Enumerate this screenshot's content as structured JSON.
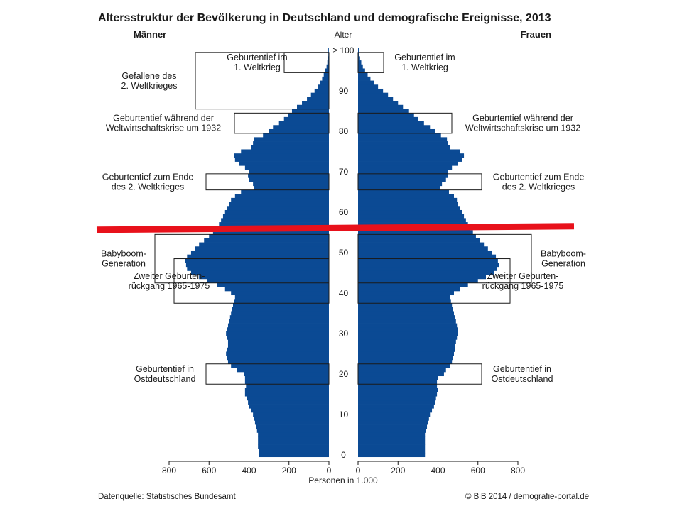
{
  "colors": {
    "bar": "#0b4a94",
    "highlight_line": "#e8111b",
    "box_stroke": "#1a1a1a"
  },
  "chart_data": {
    "type": "bar",
    "orientation": "horizontal",
    "subtype": "population-pyramid",
    "title": "Altersstruktur der Bevölkerung in Deutschland und demografische Ereignisse, 2013",
    "left_header": "Männer",
    "right_header": "Frauen",
    "center_header": "Alter",
    "xlabel": "Personen in 1.000",
    "xlim": [
      0,
      800
    ],
    "x_ticks": [
      "800",
      "600",
      "400",
      "200",
      "0",
      "0",
      "200",
      "400",
      "600",
      "800"
    ],
    "age_ticks": [
      "0",
      "10",
      "20",
      "30",
      "40",
      "50",
      "60",
      "70",
      "80",
      "90",
      "≥ 100"
    ],
    "ages": [
      0,
      1,
      2,
      3,
      4,
      5,
      6,
      7,
      8,
      9,
      10,
      11,
      12,
      13,
      14,
      15,
      16,
      17,
      18,
      19,
      20,
      21,
      22,
      23,
      24,
      25,
      26,
      27,
      28,
      29,
      30,
      31,
      32,
      33,
      34,
      35,
      36,
      37,
      38,
      39,
      40,
      41,
      42,
      43,
      44,
      45,
      46,
      47,
      48,
      49,
      50,
      51,
      52,
      53,
      54,
      55,
      56,
      57,
      58,
      59,
      60,
      61,
      62,
      63,
      64,
      65,
      66,
      67,
      68,
      69,
      70,
      71,
      72,
      73,
      74,
      75,
      76,
      77,
      78,
      79,
      80,
      81,
      82,
      83,
      84,
      85,
      86,
      87,
      88,
      89,
      90,
      91,
      92,
      93,
      94,
      95,
      96,
      97,
      98,
      99,
      100
    ],
    "series": [
      {
        "name": "Männer",
        "values": [
          350,
          350,
          355,
          355,
          355,
          355,
          360,
          365,
          370,
          375,
          380,
          390,
          400,
          405,
          410,
          420,
          420,
          415,
          420,
          420,
          425,
          460,
          490,
          505,
          510,
          515,
          510,
          505,
          505,
          510,
          515,
          510,
          505,
          500,
          495,
          490,
          485,
          480,
          475,
          470,
          490,
          520,
          560,
          610,
          650,
          690,
          710,
          715,
          720,
          710,
          690,
          670,
          650,
          625,
          600,
          580,
          565,
          550,
          540,
          530,
          520,
          510,
          500,
          490,
          470,
          440,
          375,
          380,
          400,
          405,
          400,
          420,
          450,
          470,
          475,
          440,
          390,
          380,
          375,
          330,
          300,
          280,
          250,
          225,
          205,
          185,
          160,
          135,
          110,
          90,
          72,
          56,
          44,
          34,
          26,
          18,
          12,
          8,
          5,
          3,
          3
        ]
      },
      {
        "name": "Frauen",
        "values": [
          335,
          335,
          335,
          335,
          335,
          335,
          340,
          345,
          350,
          355,
          360,
          370,
          380,
          385,
          390,
          395,
          400,
          395,
          395,
          400,
          430,
          440,
          460,
          470,
          475,
          480,
          485,
          485,
          490,
          495,
          500,
          500,
          495,
          490,
          485,
          480,
          475,
          470,
          465,
          460,
          480,
          510,
          550,
          600,
          640,
          680,
          695,
          705,
          700,
          690,
          670,
          650,
          630,
          610,
          590,
          575,
          560,
          550,
          540,
          530,
          520,
          510,
          500,
          495,
          480,
          455,
          410,
          420,
          440,
          450,
          450,
          470,
          500,
          520,
          530,
          510,
          460,
          450,
          445,
          415,
          385,
          360,
          330,
          300,
          280,
          255,
          225,
          200,
          175,
          150,
          125,
          100,
          80,
          62,
          48,
          35,
          24,
          16,
          10,
          6,
          4
        ]
      }
    ],
    "annotations_men": [
      {
        "text": "Gefallene des\n2. Weltkrieges",
        "age_from": 86,
        "age_to": 99
      },
      {
        "text": "Geburtentief im\n1. Weltkrieg",
        "age_from": 95,
        "age_to": 99
      },
      {
        "text": "Geburtentief während der\nWeltwirtschaftskrise um 1932",
        "age_from": 80,
        "age_to": 84
      },
      {
        "text": "Geburtentief zum Ende\ndes 2. Weltkrieges",
        "age_from": 66,
        "age_to": 69
      },
      {
        "text": "Babyboom-\nGeneration",
        "age_from": 43,
        "age_to": 54
      },
      {
        "text": "Zweiter Geburten-\nrückgang 1965-1975",
        "age_from": 38,
        "age_to": 48
      },
      {
        "text": "Geburtentief in\nOstdeutschland",
        "age_from": 18,
        "age_to": 22
      }
    ],
    "annotations_women": [
      {
        "text": "Geburtentief im\n1. Weltkrieg",
        "age_from": 95,
        "age_to": 99
      },
      {
        "text": "Geburtentief während der\nWeltwirtschaftskrise um 1932",
        "age_from": 80,
        "age_to": 84
      },
      {
        "text": "Geburtentief zum Ende\ndes 2. Weltkrieges",
        "age_from": 66,
        "age_to": 69
      },
      {
        "text": "Babyboom-\nGeneration",
        "age_from": 43,
        "age_to": 54
      },
      {
        "text": "Zweiter Geburten-\nrückgang 1965-1975",
        "age_from": 38,
        "age_to": 48
      },
      {
        "text": "Geburtentief in\nOstdeutschland",
        "age_from": 18,
        "age_to": 22
      }
    ],
    "highlight_age": 56
  },
  "footer": {
    "source": "Datenquelle: Statistisches Bundesamt",
    "copyright": "© BiB 2014 / demografie-portal.de"
  }
}
